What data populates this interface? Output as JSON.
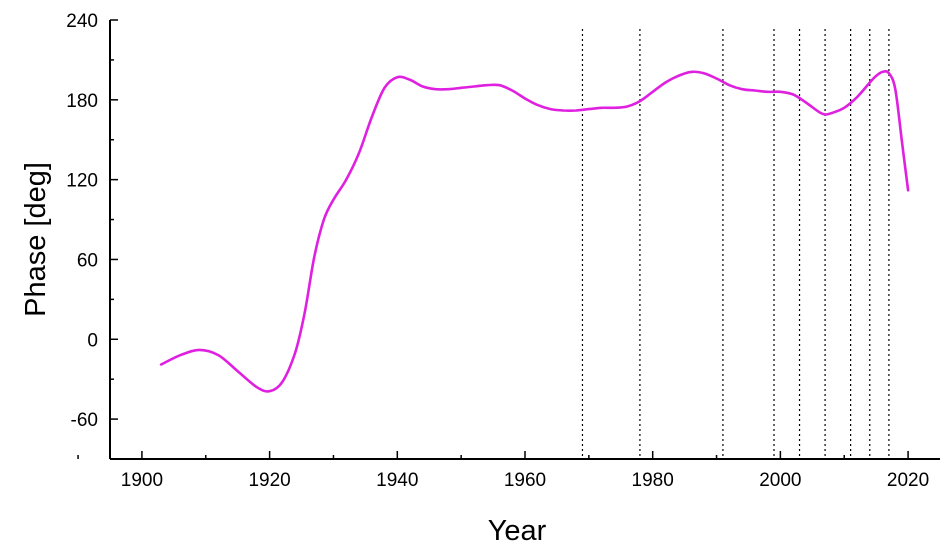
{
  "chart_data": {
    "type": "line",
    "title": "",
    "xlabel": "Year",
    "ylabel": "Phase [deg]",
    "xlim": [
      1895,
      2025
    ],
    "ylim": [
      -90,
      240
    ],
    "xticks": [
      1900,
      1920,
      1940,
      1960,
      1980,
      2000,
      2020
    ],
    "yticks": [
      -60,
      0,
      60,
      120,
      180,
      240
    ],
    "grid": false,
    "legend": "none",
    "vlines": [
      1969,
      1978,
      1991,
      1999,
      2003,
      2007,
      2011,
      2014,
      2017
    ],
    "series": [
      {
        "color": "#e020e0",
        "x": [
          1903,
          1906,
          1909,
          1912,
          1915,
          1918,
          1920,
          1922,
          1924,
          1925.5,
          1927,
          1928.5,
          1930,
          1932,
          1934,
          1936,
          1938,
          1940,
          1942,
          1944,
          1946,
          1948,
          1950,
          1952,
          1954,
          1956,
          1958,
          1960,
          1962,
          1964,
          1966,
          1968,
          1970,
          1972,
          1974,
          1976,
          1978,
          1980,
          1982,
          1984,
          1986,
          1988,
          1990,
          1992,
          1994,
          1996,
          1998,
          2000,
          2002,
          2004,
          2006,
          2007,
          2008,
          2010,
          2012,
          2014,
          2015,
          2016,
          2017,
          2018,
          2019,
          2020
        ],
        "y": [
          -19,
          -12,
          -8,
          -12,
          -24,
          -36,
          -39,
          -32,
          -10,
          20,
          62,
          90,
          105,
          120,
          140,
          167,
          189,
          197,
          195,
          190,
          188,
          188,
          189,
          190,
          191,
          191,
          187,
          181,
          176,
          173,
          172,
          172,
          173,
          174,
          174,
          175,
          179,
          186,
          193,
          198,
          201,
          200,
          196,
          191,
          188,
          187,
          186,
          186,
          184,
          178,
          171,
          169,
          170,
          174,
          182,
          193,
          198,
          201,
          200,
          188,
          150,
          112
        ]
      }
    ]
  }
}
